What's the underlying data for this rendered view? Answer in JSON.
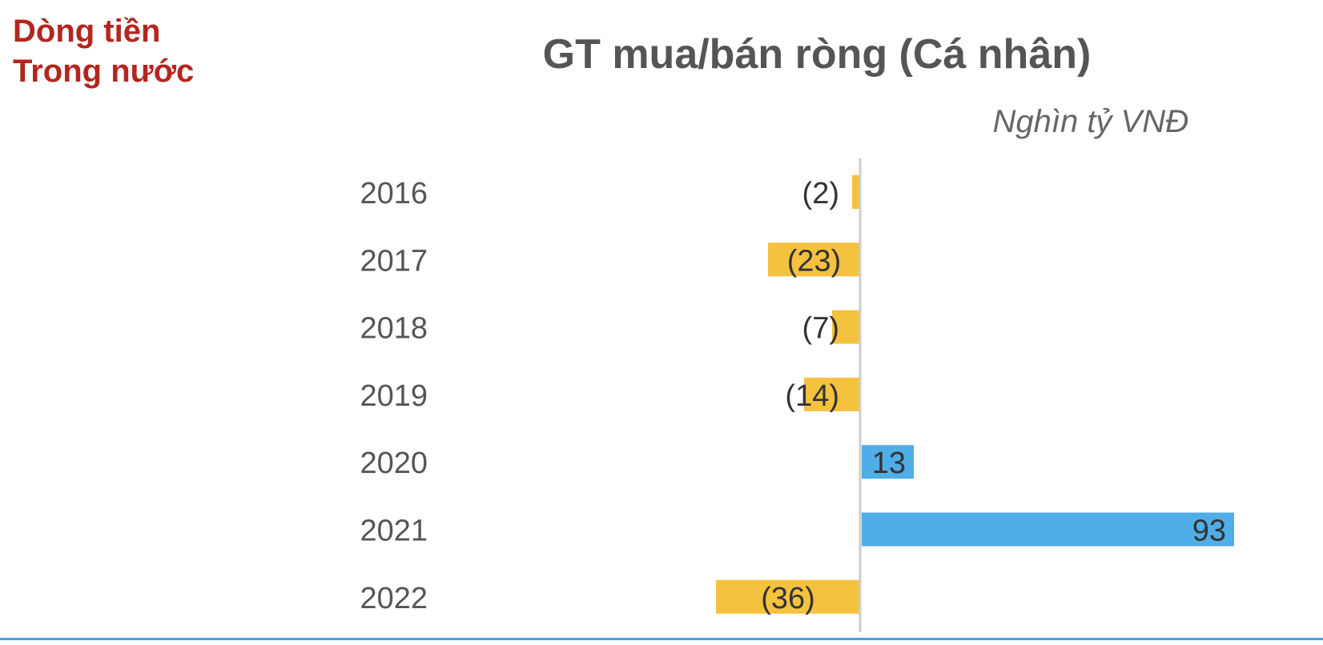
{
  "section_label": {
    "line1": "Dòng tiền",
    "line2": "Trong nước"
  },
  "chart_data": {
    "type": "bar",
    "orientation": "horizontal",
    "title": "GT mua/bán ròng (Cá nhân)",
    "unit": "Nghìn tỷ VNĐ",
    "categories": [
      "2016",
      "2017",
      "2018",
      "2019",
      "2020",
      "2021",
      "2022"
    ],
    "values": [
      -2,
      -23,
      -7,
      -14,
      13,
      93,
      -36
    ],
    "data_labels": [
      "(2)",
      "(23)",
      "(7)",
      "(14)",
      "13",
      "93",
      "(36)"
    ],
    "colors": {
      "positive": "#4fade8",
      "negative": "#f4c23f",
      "axis": "#cccccc",
      "label_text": "#333333",
      "category_text": "#555555"
    },
    "xlabel": "",
    "ylabel": "",
    "grid": false,
    "legend": "none"
  }
}
